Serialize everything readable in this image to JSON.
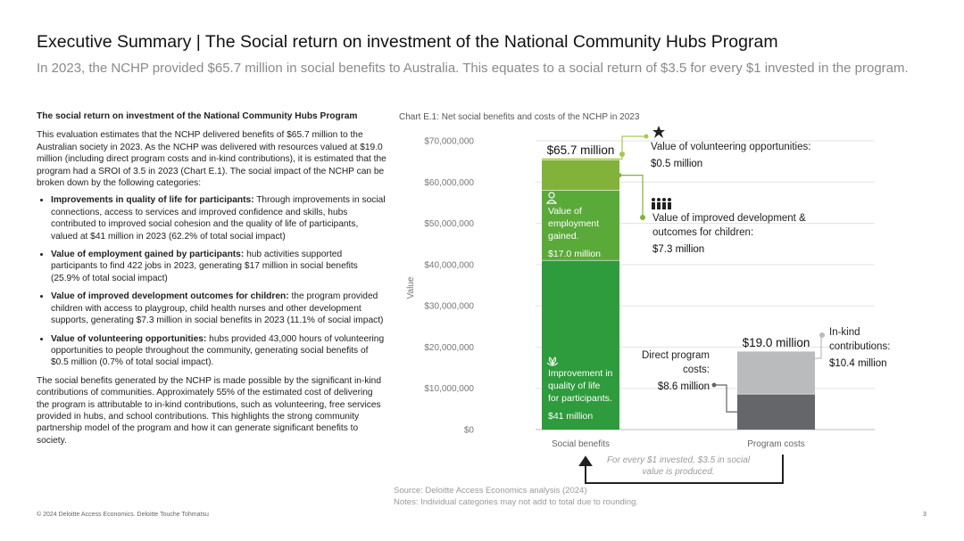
{
  "header": {
    "title": "Executive Summary | The Social return on investment of the National Community Hubs Program",
    "subtitle": "In 2023, the NCHP provided $65.7 million in social benefits to Australia. This equates to a social return of $3.5 for every $1 invested in the program."
  },
  "left": {
    "heading": "The social return on investment of the National Community Hubs Program",
    "intro": "This evaluation estimates that the NCHP delivered benefits of $65.7 million to the Australian society in 2023. As the NCHP was delivered with resources valued at $19.0 million (including direct program costs and in-kind contributions), it is estimated that the program had a SROI of 3.5 in 2023 (Chart E.1). The social impact of the NCHP can be broken down by the following categories:",
    "bullets": [
      {
        "bold": "Improvements in quality of life for participants:",
        "text": " Through improvements in social connections, access to services and improved confidence and skills, hubs contributed to improved social cohesion and the quality of life of participants, valued at $41 million in 2023 (62.2% of total social impact)"
      },
      {
        "bold": "Value of employment gained by participants:",
        "text": " hub activities supported participants to find 422 jobs in 2023, generating $17 million in social benefits (25.9% of total social impact)"
      },
      {
        "bold": "Value of improved development outcomes for children:",
        "text": " the program provided children with access to playgroup, child health nurses and other development supports, generating $7.3 million in social benefits in 2023 (11.1% of social impact)"
      },
      {
        "bold": "Value of volunteering opportunities:",
        "text": " hubs provided 43,000 hours of volunteering opportunities to people throughout the community, generating social benefits of $0.5 million (0.7% of total social impact)."
      }
    ],
    "closing": "The social benefits generated by the NCHP is made possible by the significant in-kind contributions of communities. Approximately 55% of the estimated cost of delivering the program is attributable to in-kind contributions, such as volunteering, free services provided in hubs, and school contributions. This highlights the strong community partnership model of the program and how it can generate significant benefits to society."
  },
  "chart_title": "Chart E.1: Net social benefits and costs of the NCHP in 2023",
  "chart_data": {
    "type": "bar",
    "stacked": true,
    "categories": [
      "Social benefits",
      "Program costs"
    ],
    "ylabel": "Value",
    "ylim": [
      0,
      70000000
    ],
    "yticks": [
      0,
      10000000,
      20000000,
      30000000,
      40000000,
      50000000,
      60000000,
      70000000
    ],
    "ytick_labels": [
      "$0",
      "$10,000,000",
      "$20,000,000",
      "$30,000,000",
      "$40,000,000",
      "$50,000,000",
      "$60,000,000",
      "$70,000,000"
    ],
    "grid": true,
    "series": [
      {
        "name": "Improvement in quality of life for participants.",
        "category": "Social benefits",
        "value": 41000000,
        "color": "#2e9b3c",
        "label": "Improvement in quality of life for participants.",
        "value_label": "$41 million"
      },
      {
        "name": "Value of employment gained.",
        "category": "Social benefits",
        "value": 17000000,
        "color": "#5aaa3a",
        "label": "Value of employment gained.",
        "value_label": "$17.0 million"
      },
      {
        "name": "Value of improved development & outcomes for children:",
        "category": "Social benefits",
        "value": 7300000,
        "color": "#82b23a",
        "label": "Value of improved development & outcomes for children:",
        "value_label": "$7.3 million"
      },
      {
        "name": "Value of volunteering opportunities:",
        "category": "Social benefits",
        "value": 500000,
        "color": "#a5c94a",
        "label": "Value of volunteering opportunities:",
        "value_label": "$0.5 million"
      },
      {
        "name": "Direct program costs:",
        "category": "Program costs",
        "value": 8600000,
        "color": "#64666a",
        "label": "Direct program costs:",
        "value_label": "$8.6 million"
      },
      {
        "name": "In-kind contributions:",
        "category": "Program costs",
        "value": 10400000,
        "color": "#b9bbbd",
        "label": "In-kind contributions:",
        "value_label": "$10.4 million"
      }
    ],
    "totals": [
      {
        "category": "Social benefits",
        "value": 65700000,
        "label": "$65.7 million"
      },
      {
        "category": "Program costs",
        "value": 19000000,
        "label": "$19.0 million"
      }
    ],
    "annotation": "For every $1 invested, $3.5 in social value is produced."
  },
  "source": {
    "line1": "Source: Deloitte Access Economics analysis (2024)",
    "line2": "Notes: Individual categories may not add to total due to rounding."
  },
  "footer": "© 2024 Deloitte Access Economics. Deloitte Touche Tohmatsu",
  "page_number": "3",
  "colors": {
    "green_dark": "#2e9b3c",
    "green_mid": "#5aaa3a",
    "green_light": "#82b23a",
    "gray_dark": "#64666a",
    "gray_light": "#b9bbbd"
  }
}
